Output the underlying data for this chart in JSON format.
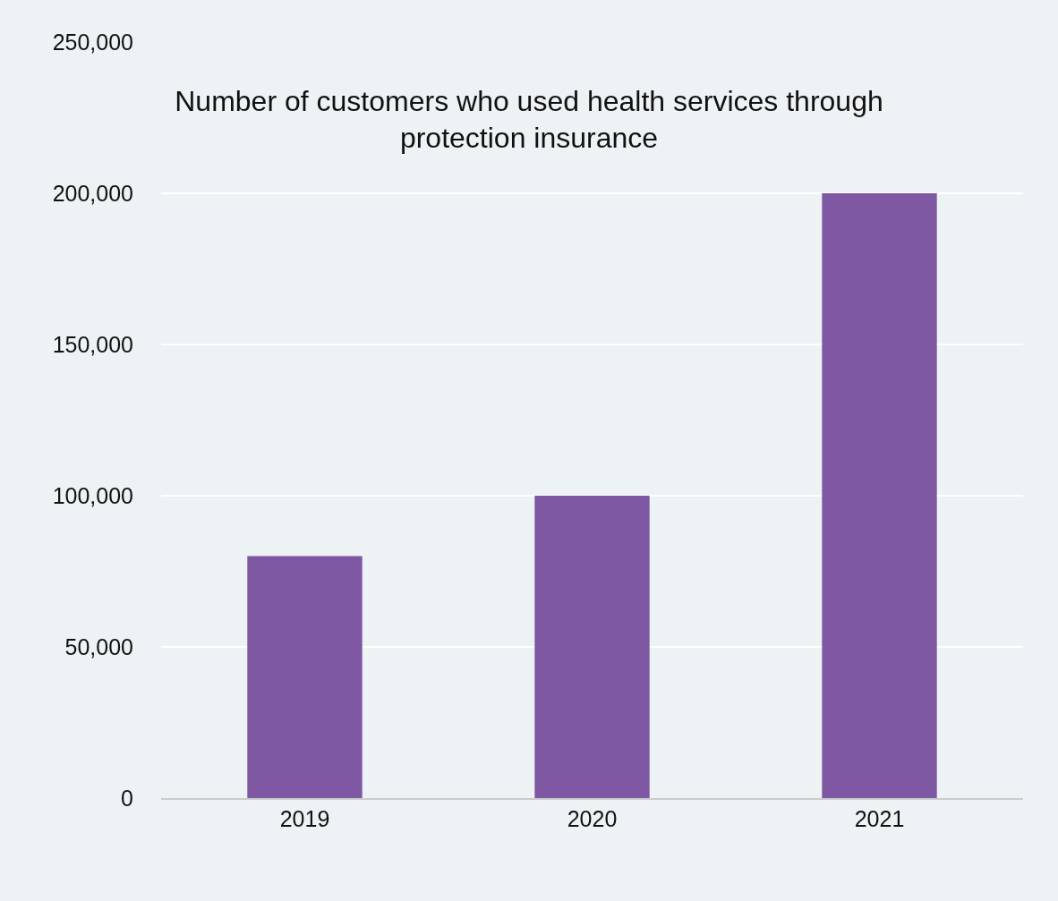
{
  "chart_data": {
    "type": "bar",
    "title": "Number of customers who used health services through protection insurance",
    "categories": [
      "2019",
      "2020",
      "2021"
    ],
    "values": [
      80000,
      100000,
      200000
    ],
    "color": "#7f58a3",
    "ylim": [
      0,
      250000
    ],
    "yticks": [
      0,
      {
        "value": 50000,
        "label": "50,000"
      },
      {
        "value": 100000,
        "label": "100,000"
      },
      {
        "value": 150000,
        "label": "150,000"
      },
      {
        "value": 200000,
        "label": "200,000"
      },
      {
        "value": 250000,
        "label": "250,000"
      }
    ],
    "grid": "y",
    "legend": false
  }
}
